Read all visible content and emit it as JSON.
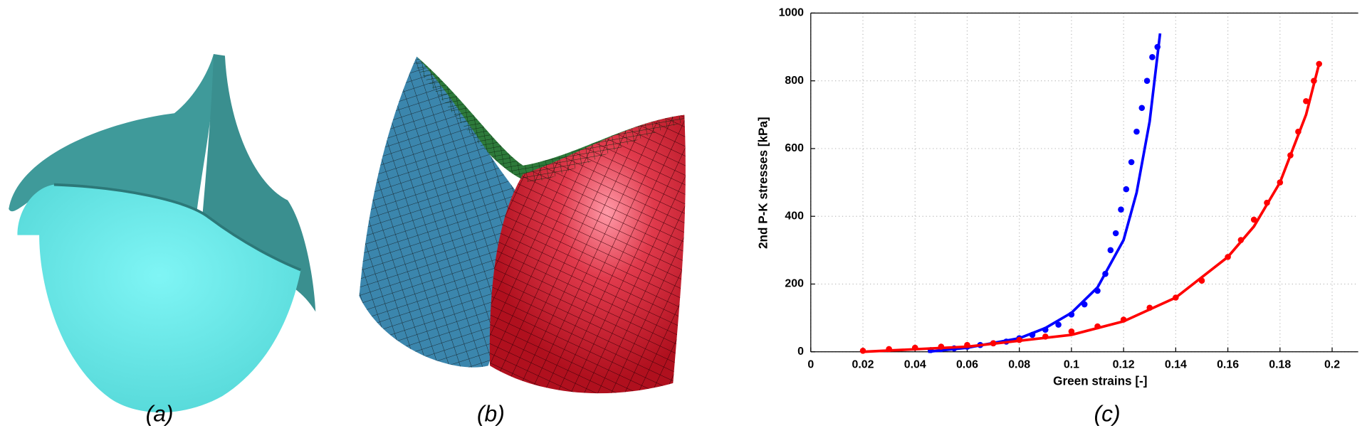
{
  "panel_labels": [
    "(a)",
    "(b)",
    "(c)"
  ],
  "chart_data": {
    "type": "scatter",
    "xlabel": "Green strains [-]",
    "ylabel": "2nd P-K stresses [kPa]",
    "xlim": [
      0,
      0.21
    ],
    "ylim": [
      0,
      1000
    ],
    "xticks": [
      0,
      0.02,
      0.04,
      0.06,
      0.08,
      0.1,
      0.12,
      0.14,
      0.16,
      0.18,
      0.2
    ],
    "yticks": [
      0,
      200,
      400,
      600,
      800,
      1000
    ],
    "grid": true,
    "series": [
      {
        "color": "#0000ff",
        "style": "markers",
        "x": [
          0.046,
          0.05,
          0.055,
          0.06,
          0.065,
          0.07,
          0.075,
          0.08,
          0.085,
          0.09,
          0.095,
          0.1,
          0.105,
          0.11,
          0.113,
          0.115,
          0.117,
          0.119,
          0.121,
          0.123,
          0.125,
          0.127,
          0.129,
          0.131,
          0.133
        ],
        "values": [
          5,
          8,
          10,
          15,
          20,
          25,
          30,
          40,
          50,
          65,
          80,
          110,
          140,
          180,
          230,
          300,
          350,
          420,
          480,
          560,
          650,
          720,
          800,
          870,
          900
        ]
      },
      {
        "color": "#0000ff",
        "style": "line",
        "x": [
          0.045,
          0.06,
          0.08,
          0.09,
          0.1,
          0.11,
          0.12,
          0.125,
          0.13,
          0.134
        ],
        "values": [
          0,
          12,
          40,
          70,
          115,
          190,
          330,
          470,
          680,
          940
        ]
      },
      {
        "color": "#ff0000",
        "style": "markers",
        "x": [
          0.02,
          0.03,
          0.04,
          0.05,
          0.06,
          0.07,
          0.08,
          0.09,
          0.1,
          0.11,
          0.12,
          0.13,
          0.14,
          0.15,
          0.16,
          0.165,
          0.17,
          0.175,
          0.18,
          0.184,
          0.187,
          0.19,
          0.193,
          0.195
        ],
        "values": [
          3,
          8,
          12,
          15,
          20,
          25,
          35,
          45,
          60,
          75,
          95,
          130,
          160,
          210,
          280,
          330,
          390,
          440,
          500,
          580,
          650,
          740,
          800,
          850
        ]
      },
      {
        "color": "#ff0000",
        "style": "line",
        "x": [
          0.02,
          0.06,
          0.1,
          0.12,
          0.14,
          0.16,
          0.17,
          0.18,
          0.19,
          0.195
        ],
        "values": [
          0,
          15,
          50,
          90,
          160,
          280,
          370,
          500,
          700,
          850
        ]
      }
    ]
  }
}
